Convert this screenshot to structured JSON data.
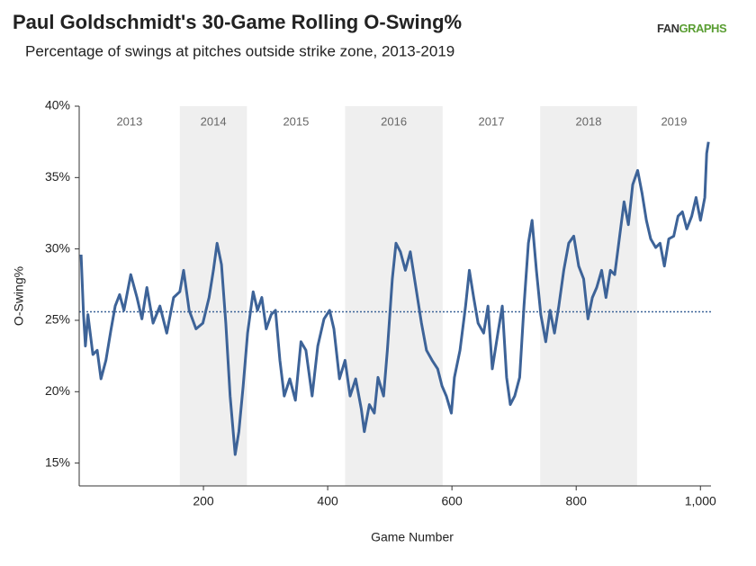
{
  "chart_data": {
    "type": "line",
    "title": "Paul Goldschmidt's 30-Game Rolling O-Swing%",
    "subtitle": "Percentage of swings at pitches outside strike zone, 2013-2019",
    "logo_parts": [
      "FAN",
      "GRAPHS"
    ],
    "x_label": "Game Number",
    "y_label": "O-Swing%",
    "color": "#3d6398",
    "xlim": [
      0,
      1017
    ],
    "ylim": [
      13.4,
      40
    ],
    "xticks": [
      200,
      400,
      600,
      800,
      {
        "value": 1000,
        "label": "1,000"
      }
    ],
    "yticks": [
      {
        "value": 15,
        "label": "15%"
      },
      {
        "value": 20,
        "label": "20%"
      },
      {
        "value": 25,
        "label": "25%"
      },
      {
        "value": 30,
        "label": "30%"
      },
      {
        "value": 35,
        "label": "35%"
      },
      {
        "value": 40,
        "label": "40%"
      }
    ],
    "reference_line": 25.6,
    "year_bands": [
      {
        "label": "2013",
        "start": 0,
        "end": 162,
        "shaded": false
      },
      {
        "label": "2014",
        "start": 162,
        "end": 270,
        "shaded": true
      },
      {
        "label": "2015",
        "start": 270,
        "end": 428,
        "shaded": false
      },
      {
        "label": "2016",
        "start": 428,
        "end": 585,
        "shaded": true
      },
      {
        "label": "2017",
        "start": 585,
        "end": 742,
        "shaded": false
      },
      {
        "label": "2018",
        "start": 742,
        "end": 898,
        "shaded": true
      },
      {
        "label": "2019",
        "start": 898,
        "end": 1017,
        "shaded": false
      }
    ],
    "x": [
      3,
      7,
      10,
      14,
      22,
      29,
      35,
      43,
      51,
      58,
      65,
      72,
      83,
      93,
      101,
      109,
      119,
      130,
      141,
      152,
      162,
      168,
      177,
      188,
      199,
      209,
      216,
      222,
      229,
      236,
      243,
      251,
      257,
      264,
      271,
      280,
      287,
      294,
      301,
      309,
      316,
      323,
      330,
      339,
      348,
      357,
      365,
      375,
      384,
      394,
      403,
      410,
      419,
      428,
      436,
      445,
      454,
      459,
      467,
      475,
      481,
      490,
      496,
      504,
      510,
      517,
      525,
      533,
      542,
      551,
      559,
      568,
      577,
      584,
      591,
      599,
      604,
      613,
      622,
      628,
      635,
      642,
      651,
      658,
      665,
      674,
      681,
      688,
      694,
      701,
      709,
      716,
      723,
      729,
      736,
      743,
      751,
      758,
      765,
      772,
      780,
      788,
      796,
      804,
      812,
      819,
      826,
      833,
      841,
      848,
      855,
      862,
      870,
      877,
      884,
      891,
      899,
      906,
      913,
      920,
      928,
      935,
      942,
      949,
      957,
      964,
      971,
      978,
      986,
      993,
      1000,
      1007,
      1010,
      1013
    ],
    "values": [
      29.6,
      25.4,
      23.2,
      25.4,
      22.6,
      22.9,
      20.9,
      22.2,
      24.3,
      26,
      26.8,
      25.7,
      28.2,
      26.6,
      25.1,
      27.3,
      24.8,
      26,
      24.1,
      26.6,
      27,
      28.5,
      25.7,
      24.4,
      24.8,
      26.6,
      28.5,
      30.4,
      28.9,
      24.8,
      19.7,
      15.6,
      17.2,
      20.4,
      24.1,
      27,
      25.7,
      26.6,
      24.4,
      25.4,
      25.7,
      22.2,
      19.7,
      20.9,
      19.4,
      23.5,
      22.9,
      19.7,
      23.2,
      25.1,
      25.7,
      24.4,
      20.9,
      22.2,
      19.7,
      20.9,
      18.8,
      17.2,
      19.1,
      18.5,
      21,
      19.7,
      22.9,
      27.9,
      30.4,
      29.8,
      28.5,
      29.8,
      27.3,
      24.8,
      22.9,
      22.2,
      21.6,
      20.4,
      19.7,
      18.5,
      21,
      22.9,
      26,
      28.5,
      26.6,
      24.8,
      24.1,
      26,
      21.6,
      24.1,
      26,
      21,
      19.1,
      19.7,
      21,
      26,
      30.4,
      32,
      28.5,
      25.4,
      23.5,
      25.7,
      24.1,
      26,
      28.5,
      30.4,
      30.9,
      28.8,
      27.9,
      25.1,
      26.6,
      27.3,
      28.5,
      26.6,
      28.5,
      28.2,
      30.9,
      33.3,
      31.7,
      34.5,
      35.5,
      33.9,
      32,
      30.7,
      30.1,
      30.4,
      28.8,
      30.7,
      30.9,
      32.3,
      32.6,
      31.4,
      32.3,
      33.6,
      32,
      33.6,
      36.7,
      37.5
    ]
  }
}
